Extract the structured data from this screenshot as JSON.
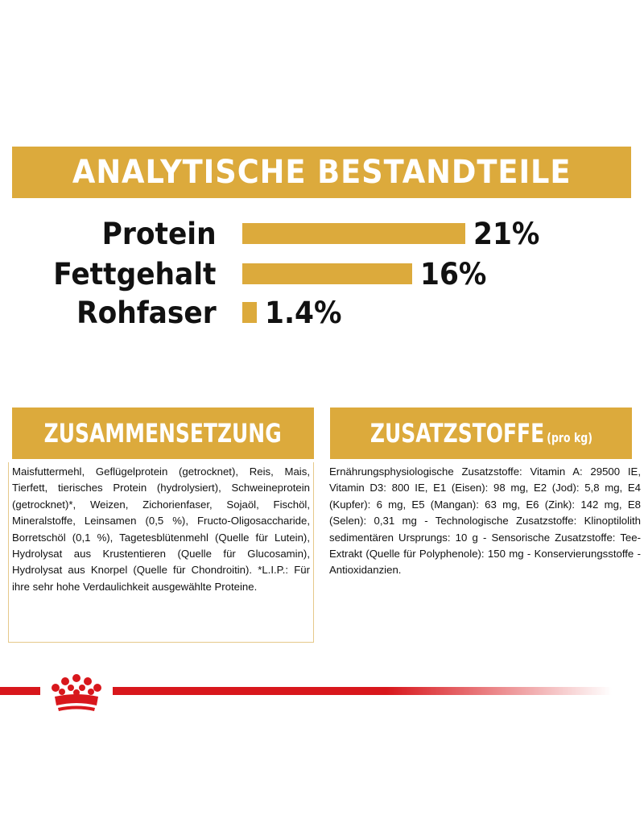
{
  "banner": {
    "title": "ANALYTISCHE BESTANDTEILE"
  },
  "analysis": {
    "rows": [
      {
        "label": "Protein",
        "value": "21%",
        "fraction": 0.21
      },
      {
        "label": "Fettgehalt",
        "value": "16%",
        "fraction": 0.16
      },
      {
        "label": "Rohfaser",
        "value": "1.4%",
        "fraction": 0.014
      }
    ]
  },
  "composition": {
    "title": "ZUSAMMENSETZUNG",
    "text": "Maisfuttermehl, Geflügelprotein (getrocknet), Reis, Mais, Tierfett, tierisches Protein (hydrolysiert), Schweineprotein (getrocknet)*, Weizen, Zichorienfaser, Sojaöl, Fischöl, Mineralstoffe, Leinsamen (0,5 %), Fructo-Oligosaccharide, Borretschöl (0,1 %), Tagetesblütenmehl (Quelle für Lutein), Hydrolysat aus Krustentieren (Quelle für Glucosamin), Hydrolysat aus Knorpel (Quelle für Chondroitin). *L.I.P.: Für ihre sehr hohe Verdaulichkeit ausgewählte Proteine."
  },
  "additives": {
    "title": "ZUSATZSTOFFE",
    "subtitle": "(pro kg)",
    "text": "Ernährungsphysiologische Zusatzstoffe: Vitamin A: 29500 IE, Vitamin D3: 800 IE, E1 (Eisen): 98 mg, E2 (Jod): 5,8 mg, E4 (Kupfer): 6 mg, E5 (Mangan): 63 mg, E6 (Zink): 142 mg, E8 (Selen): 0,31 mg - Technologische Zusatzstoffe: Klinoptilolith sedimentären Ursprungs: 10 g - Sensorische Zusatzstoffe: Tee-Extrakt (Quelle für Polyphenole): 150 mg - Konservierungsstoffe - Antioxidanzien."
  },
  "colors": {
    "gold": "#dcaa3c",
    "red": "#d8171c"
  },
  "icons": {
    "logo": "crown-icon"
  }
}
